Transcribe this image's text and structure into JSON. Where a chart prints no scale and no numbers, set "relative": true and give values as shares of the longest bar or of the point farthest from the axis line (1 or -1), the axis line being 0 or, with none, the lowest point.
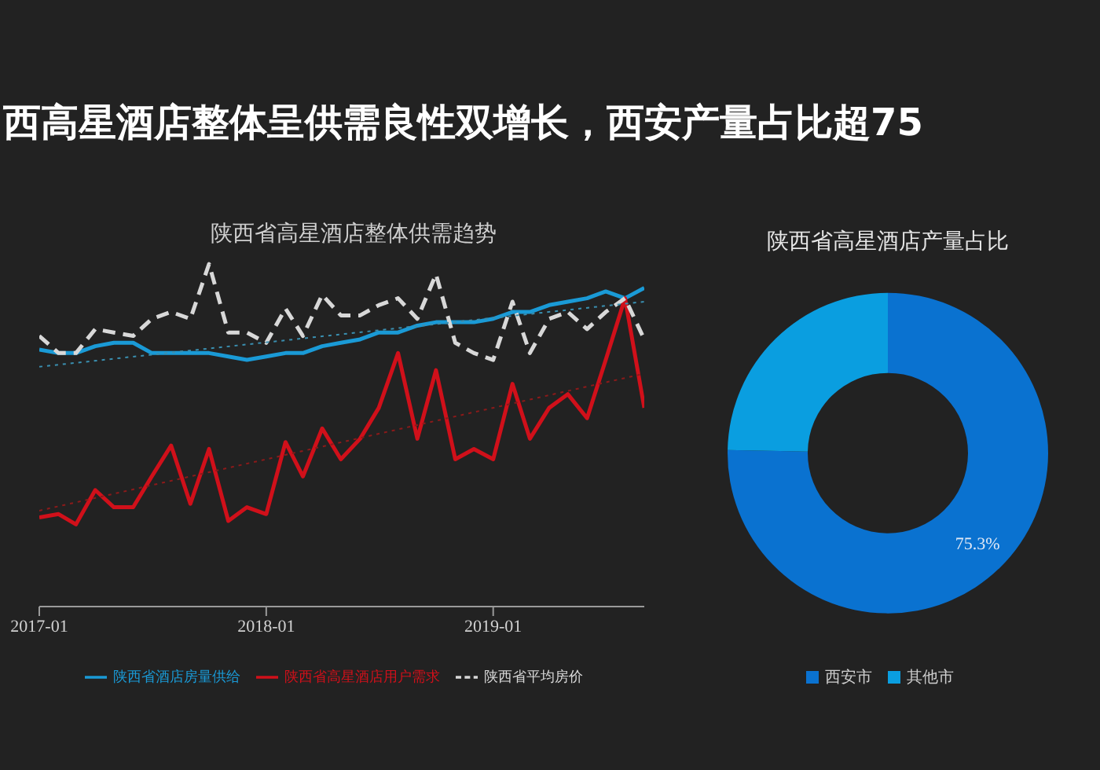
{
  "chart_data": [
    {
      "type": "line",
      "title": "陕西省高星酒店整体供需趋势",
      "annotations": [
        "西高星酒店整体呈供需良性双增长，西安产量占比超75"
      ],
      "relative": true,
      "marker": "none",
      "legend": "bottom",
      "x": [
        "2017-01",
        "2017-02",
        "2017-03",
        "2017-04",
        "2017-05",
        "2017-06",
        "2017-07",
        "2017-08",
        "2017-09",
        "2017-10",
        "2017-11",
        "2017-12",
        "2018-01",
        "2018-02",
        "2018-03",
        "2018-04",
        "2018-05",
        "2018-06",
        "2018-07",
        "2018-08",
        "2018-09",
        "2018-10",
        "2018-11",
        "2018-12",
        "2019-01",
        "2019-02",
        "2019-03",
        "2019-04",
        "2019-05",
        "2019-06",
        "2019-07",
        "2019-08",
        "2019-09"
      ],
      "xlim": [
        "2017-01",
        "2019-09"
      ],
      "xticks": [
        "2017-01",
        "2018-01",
        "2019-01"
      ],
      "series": [
        {
          "name": "陕西省酒店房量供给",
          "color": "#1a9ad6",
          "values": [
            0.75,
            0.74,
            0.74,
            0.76,
            0.77,
            0.77,
            0.74,
            0.74,
            0.74,
            0.74,
            0.73,
            0.72,
            0.73,
            0.74,
            0.74,
            0.76,
            0.77,
            0.78,
            0.8,
            0.8,
            0.82,
            0.83,
            0.83,
            0.83,
            0.84,
            0.86,
            0.86,
            0.88,
            0.89,
            0.9,
            0.92,
            0.9,
            0.93
          ]
        },
        {
          "name": "陕西省高星酒店用户需求",
          "color": "#d0101a",
          "values": [
            0.26,
            0.27,
            0.24,
            0.34,
            0.29,
            0.29,
            0.38,
            0.47,
            0.3,
            0.46,
            0.25,
            0.29,
            0.27,
            0.48,
            0.38,
            0.52,
            0.43,
            0.49,
            0.58,
            0.74,
            0.49,
            0.69,
            0.43,
            0.46,
            0.43,
            0.65,
            0.49,
            0.58,
            0.62,
            0.55,
            0.72,
            0.9,
            0.58
          ]
        },
        {
          "name": "陕西省平均房价",
          "color": "#d8d8d8",
          "line_style": "dashed",
          "values": [
            0.79,
            0.74,
            0.74,
            0.81,
            0.8,
            0.79,
            0.84,
            0.86,
            0.84,
            1,
            0.8,
            0.8,
            0.77,
            0.87,
            0.79,
            0.91,
            0.85,
            0.85,
            0.88,
            0.9,
            0.84,
            0.97,
            0.77,
            0.74,
            0.72,
            0.89,
            0.74,
            0.84,
            0.86,
            0.81,
            0.86,
            0.9,
            0.78
          ]
        },
        {
          "type": "line",
          "color": "#3a8fb0",
          "line_style": "dotted",
          "x": [
            "2017-01",
            "2019-09"
          ],
          "values": [
            0.7,
            0.89
          ]
        },
        {
          "type": "line",
          "color": "#8b1a1a",
          "line_style": "dotted",
          "x": [
            "2017-01",
            "2019-09"
          ],
          "values": [
            0.28,
            0.68
          ]
        }
      ]
    },
    {
      "type": "donut",
      "title": "陕西省高星酒店产量占比",
      "categories": [
        "西安市",
        "其他市"
      ],
      "values": [
        75.3,
        24.7
      ],
      "colors": [
        "#0a72d0",
        "#0a9ee0"
      ],
      "value_labels": [
        "75.3%",
        null
      ],
      "legend": "bottom"
    }
  ]
}
